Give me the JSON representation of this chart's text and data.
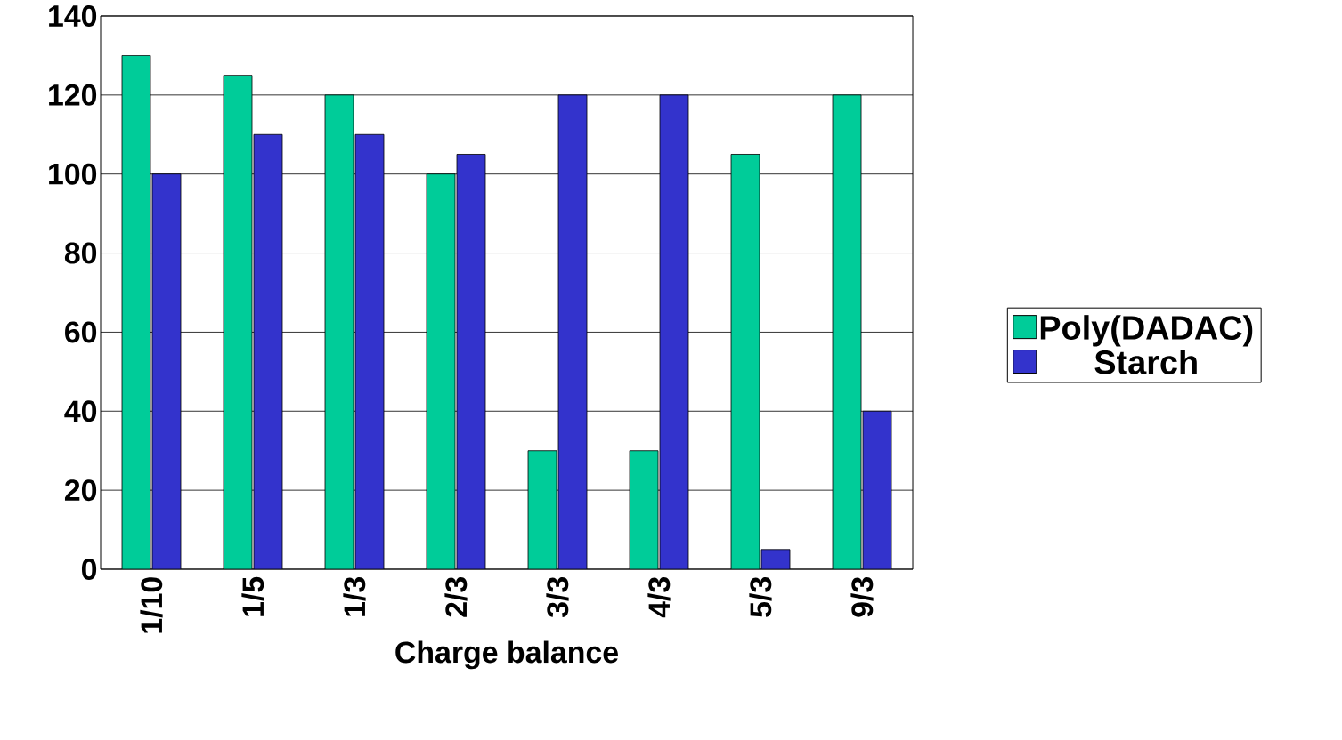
{
  "chart_data": {
    "type": "bar",
    "xlabel": "Charge balance",
    "categories": [
      "1/10",
      "1/5",
      "1/3",
      "2/3",
      "3/3",
      "4/3",
      "5/3",
      "9/3"
    ],
    "series": [
      {
        "name": "Poly(DADAC)",
        "color": "#00cc99",
        "values": [
          130,
          125,
          120,
          100,
          30,
          30,
          105,
          120
        ]
      },
      {
        "name": "Starch",
        "color": "#3333cc",
        "values": [
          100,
          110,
          110,
          105,
          120,
          120,
          5,
          40
        ]
      }
    ],
    "ylim": [
      0,
      140
    ],
    "yticks": [
      0,
      20,
      40,
      60,
      80,
      100,
      120,
      140
    ],
    "grid": "y",
    "legend": "right"
  }
}
